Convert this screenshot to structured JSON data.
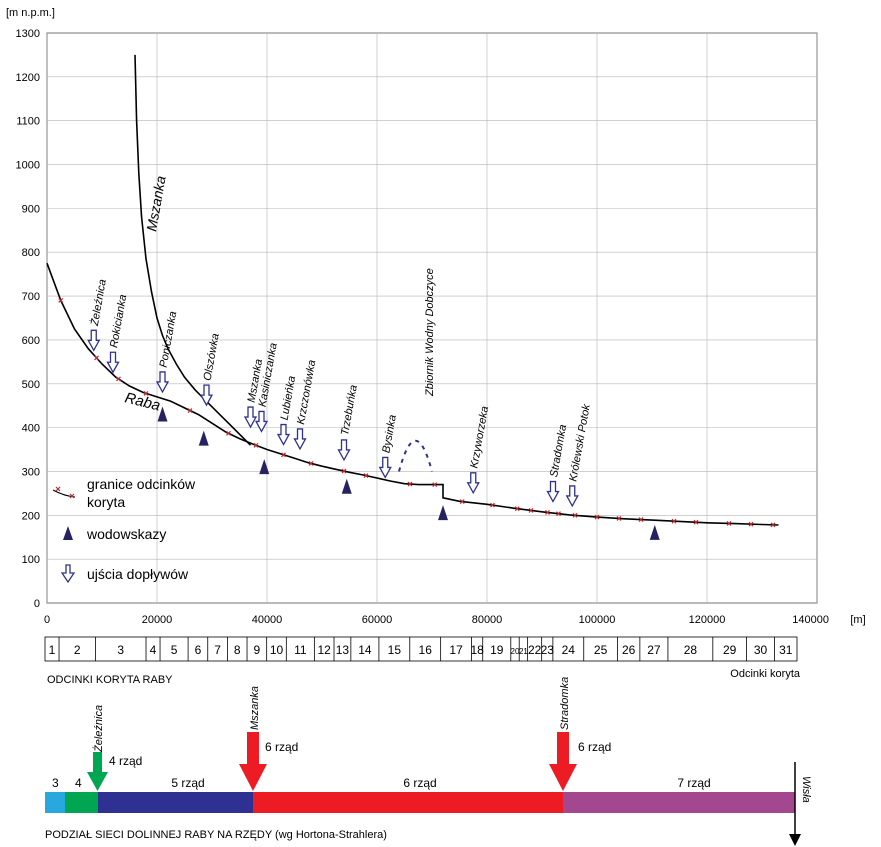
{
  "chart_data": {
    "type": "line",
    "y_unit": "[m n.p.m.]",
    "x_unit": "[m]",
    "xlim": [
      0,
      140000
    ],
    "ylim": [
      0,
      1300
    ],
    "x_ticks": [
      "0",
      "20000",
      "40000",
      "60000",
      "80000",
      "100000",
      "120000",
      "140000"
    ],
    "y_ticks": [
      "0",
      "100",
      "200",
      "300",
      "400",
      "500",
      "600",
      "700",
      "800",
      "900",
      "1000",
      "1100",
      "1200",
      "1300"
    ],
    "grid": true,
    "series": [
      {
        "name": "Raba",
        "x": [
          0,
          2500,
          5000,
          7500,
          10000,
          12500,
          15000,
          17500,
          20000,
          22500,
          25000,
          27500,
          30000,
          32500,
          35000,
          37500,
          40000,
          42500,
          45000,
          47500,
          50000,
          52500,
          55000,
          57500,
          60000,
          62500,
          65000,
          67500,
          70000,
          72000,
          72000,
          75000,
          80000,
          85000,
          90000,
          95000,
          100000,
          105000,
          110000,
          115000,
          120000,
          125000,
          130000,
          133000
        ],
        "y": [
          775,
          690,
          625,
          580,
          545,
          515,
          495,
          480,
          470,
          460,
          445,
          430,
          410,
          390,
          375,
          362,
          350,
          340,
          330,
          320,
          312,
          305,
          298,
          292,
          285,
          278,
          272,
          270,
          270,
          270,
          240,
          232,
          225,
          216,
          208,
          201,
          196,
          192,
          189,
          186,
          183,
          181,
          179,
          178
        ]
      },
      {
        "name": "Mszanka",
        "x": [
          16000,
          16300,
          16700,
          17200,
          18000,
          19000,
          20000,
          21000,
          22000,
          23500,
          25000,
          27000,
          29000,
          31000,
          33000,
          35000,
          37000
        ],
        "y": [
          1250,
          1100,
          980,
          880,
          785,
          710,
          650,
          610,
          580,
          545,
          515,
          485,
          460,
          435,
          410,
          385,
          360
        ]
      },
      {
        "name": "Zbiornik Wodny Dobczyce",
        "x": [
          64000,
          66000,
          68000,
          70000
        ],
        "y": [
          300,
          370,
          370,
          300
        ]
      }
    ],
    "section_boundaries": {
      "x": [
        2500,
        9000,
        13000,
        18000,
        26000,
        33000,
        38000,
        43000,
        48000,
        54000,
        58000,
        66000,
        70500,
        75500,
        81000,
        85500,
        88000,
        91000,
        93000,
        96000,
        100000,
        104000,
        108000,
        114000,
        118000,
        124000,
        128000,
        132000
      ]
    },
    "annotations": {
      "tributaries": [
        {
          "label": "Żeleźnica",
          "x": 8500,
          "y": 590
        },
        {
          "label": "Rokicianka",
          "x": 12000,
          "y": 540
        },
        {
          "label": "Poniczanka",
          "x": 21000,
          "y": 495
        },
        {
          "label": "Olszówka",
          "x": 29000,
          "y": 465
        },
        {
          "label": "Mszanka",
          "x": 37000,
          "y": 415
        },
        {
          "label": "Kasiniczanka",
          "x": 39000,
          "y": 405
        },
        {
          "label": "Lubieńka",
          "x": 43000,
          "y": 375
        },
        {
          "label": "Krzczonówka",
          "x": 46000,
          "y": 365
        },
        {
          "label": "Trzebuńka",
          "x": 54000,
          "y": 340
        },
        {
          "label": "Bysinka",
          "x": 61500,
          "y": 300
        },
        {
          "label": "Krzyworzeka",
          "x": 77500,
          "y": 265
        },
        {
          "label": "Stradomka",
          "x": 92000,
          "y": 245
        },
        {
          "label": "Królewski Potok",
          "x": 95500,
          "y": 235
        }
      ],
      "gauges": [
        {
          "x": 21000,
          "y": 430
        },
        {
          "x": 28500,
          "y": 375
        },
        {
          "x": 39500,
          "y": 310
        },
        {
          "x": 54500,
          "y": 265
        },
        {
          "x": 72000,
          "y": 205
        },
        {
          "x": 110500,
          "y": 160
        }
      ],
      "raba_label": "Raba",
      "mszanka_label": "Mszanka",
      "reservoir_label": "Zbiornik Wodny Dobczyce"
    }
  },
  "legend": {
    "boundaries": "granice odcinków koryta",
    "boundaries_line1": "granice odcinków",
    "boundaries_line2": "koryta",
    "gauges": "wodowskazy",
    "tributaries": "ujścia dopływów"
  },
  "sections": {
    "title": "ODCINKI KORYTA RABY",
    "caption": "Odcinki koryta",
    "labels": [
      "1",
      "2",
      "3",
      "4",
      "5",
      "6",
      "7",
      "8",
      "9",
      "10",
      "11",
      "12",
      "13",
      "14",
      "15",
      "16",
      "17",
      "18",
      "19",
      "20",
      "21",
      "22",
      "23",
      "24",
      "25",
      "26",
      "27",
      "28",
      "29",
      "30",
      "31"
    ],
    "x_edges": [
      0,
      2500,
      9000,
      18000,
      20500,
      25500,
      29000,
      32500,
      36000,
      39500,
      43000,
      48000,
      51500,
      54500,
      59500,
      65000,
      70500,
      76000,
      78000,
      83000,
      84500,
      86000,
      88500,
      90500,
      96000,
      102000,
      106000,
      111000,
      119000,
      125000,
      130000,
      134000
    ]
  },
  "orders": {
    "title": "PODZIAŁ SIECI DOLINNEJ RABY NA RZĘDY (wg Hortona-Strahlera)",
    "segments": [
      {
        "label": "3",
        "color": "#29a8e0"
      },
      {
        "label": "4",
        "color": "#00a651"
      },
      {
        "label": "5 rząd",
        "color": "#2e3192"
      },
      {
        "label": "6 rząd",
        "color": "#ed1c24"
      },
      {
        "label": "7 rząd",
        "color": "#a3488f"
      }
    ],
    "junctions": [
      {
        "label": "Żeleźnica",
        "order_label": "4 rząd",
        "color": "#00a651"
      },
      {
        "label": "Mszanka",
        "order_label": "6 rząd",
        "color": "#ed1c24"
      },
      {
        "label": "Stradomka",
        "order_label": "6 rząd",
        "color": "#ed1c24"
      }
    ],
    "mouth_label": "Wisła"
  }
}
